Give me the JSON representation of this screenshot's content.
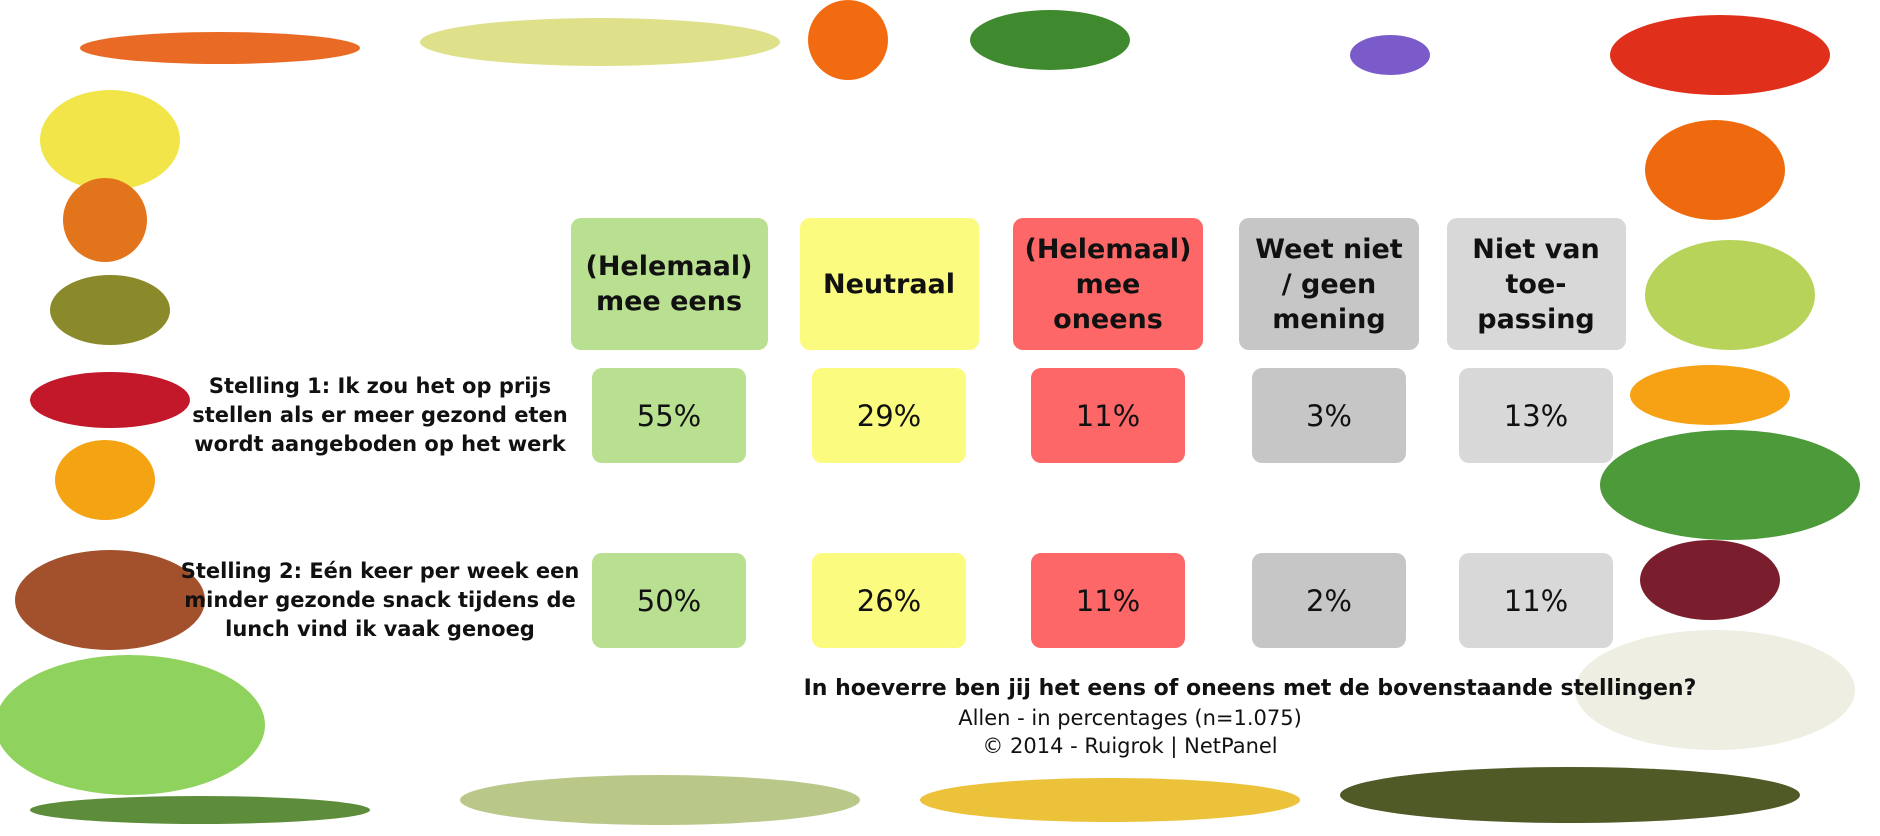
{
  "table": {
    "columns": [
      "(Helemaal) mee eens",
      "Neutraal",
      "(Helemaal) mee oneens",
      "Weet niet / geen mening",
      "Niet van toe-passing"
    ],
    "rows": [
      {
        "statement": "Stelling 1: Ik zou het op prijs stellen als er meer gezond eten wordt aangeboden op het werk",
        "cells": [
          "55%",
          "29%",
          "11%",
          "3%",
          "13%"
        ]
      },
      {
        "statement": "Stelling 2: Eén keer per week een minder gezonde snack tijdens de lunch vind ik vaak genoeg",
        "cells": [
          "50%",
          "26%",
          "11%",
          "2%",
          "11%"
        ]
      }
    ]
  },
  "footer": {
    "question": "In hoeverre ben jij het eens of oneens met de bovenstaande stellingen?",
    "subtitle": "Allen - in percentages (n=1.075)",
    "copyright": "©  2014 - Ruigrok | NetPanel"
  }
}
